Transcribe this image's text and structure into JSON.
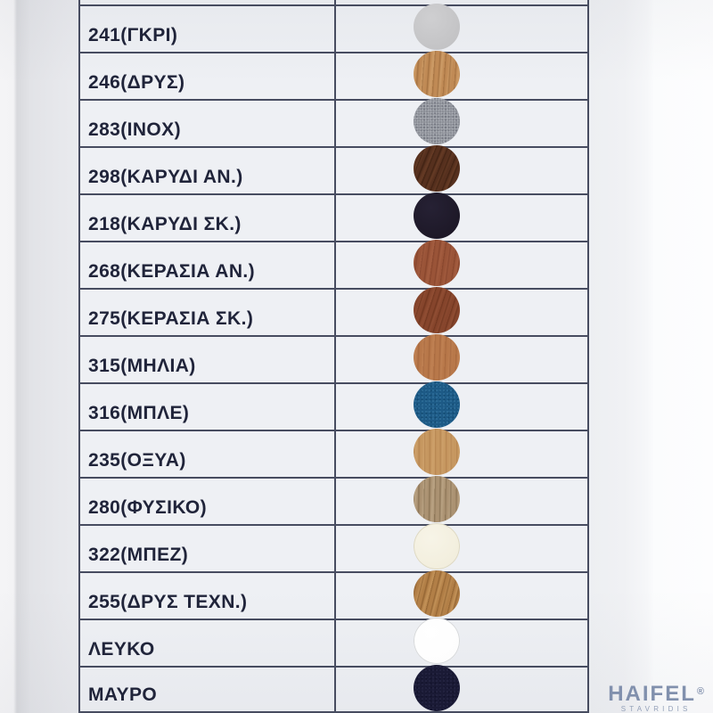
{
  "colors": {
    "line": "#474c60",
    "label_text": "#20243a",
    "paper": "#e9eaee",
    "cell": "#eef0f4",
    "brand": "#8190ad",
    "brand_sub": "#94a1b9"
  },
  "table": {
    "rows": [
      {
        "label": "241(ΓΚΡΙ)",
        "swatch": {
          "type": "smooth",
          "base": "#c3c3c5",
          "light": "#cfcfd1"
        }
      },
      {
        "label": "246(ΔΡΥΣ)",
        "swatch": {
          "type": "wood",
          "base": "#c08a55",
          "grain": "#99683a",
          "light": "#d9ae79",
          "angle": 94
        }
      },
      {
        "label": "283(INOX)",
        "swatch": {
          "type": "speckle",
          "base": "#8c8f97",
          "dot1": "#a9acb3",
          "dot2": "#6f727c"
        }
      },
      {
        "label": "298(ΚΑΡΥΔΙ ΑΝ.)",
        "swatch": {
          "type": "wood",
          "base": "#56301e",
          "grain": "#371c0e",
          "light": "#74452b",
          "angle": 112
        }
      },
      {
        "label": "218(ΚΑΡΥΔΙ ΣΚ.)",
        "swatch": {
          "type": "smooth",
          "base": "#1d1827",
          "light": "#262134"
        }
      },
      {
        "label": "268(ΚΕΡΑΣΙΑ ΑΝ.)",
        "swatch": {
          "type": "wood",
          "base": "#9a5438",
          "grain": "#7f3f28",
          "light": "#ad6648",
          "angle": 98
        }
      },
      {
        "label": "275(ΚΕΡΑΣΙΑ ΣΚ.)",
        "swatch": {
          "type": "wood",
          "base": "#86452c",
          "grain": "#67301a",
          "light": "#9a563a",
          "angle": 108
        }
      },
      {
        "label": "315(ΜΗΛΙΑ)",
        "swatch": {
          "type": "wood",
          "base": "#b8784a",
          "grain": "#a1633a",
          "light": "#c78a5c",
          "angle": 92
        }
      },
      {
        "label": "316(ΜΠΛΕ)",
        "swatch": {
          "type": "leather",
          "base": "#1d5a86",
          "dot1": "#2f6e99",
          "dot2": "#134a70"
        }
      },
      {
        "label": "235(ΟΞΥΑ)",
        "swatch": {
          "type": "wood",
          "base": "#c69760",
          "grain": "#b07f4b",
          "light": "#d4a974",
          "angle": 90
        }
      },
      {
        "label": "280(ΦΥΣΙΚΟ)",
        "swatch": {
          "type": "wood",
          "base": "#ab9272",
          "grain": "#7f694b",
          "light": "#c7b394",
          "angle": 91
        }
      },
      {
        "label": "322(ΜΠΕΖ)",
        "swatch": {
          "type": "smooth",
          "base": "#f2eedd",
          "light": "#f7f4e7",
          "ring": "#ddd8c2"
        }
      },
      {
        "label": "255(ΔΡΥΣ ΤΕΧΝ.)",
        "swatch": {
          "type": "wood",
          "base": "#b27f47",
          "grain": "#875a2b",
          "light": "#d2a468",
          "angle": 104
        }
      },
      {
        "label": "ΛΕΥΚΟ",
        "swatch": {
          "type": "smooth",
          "base": "#fdfdfd",
          "light": "#ffffff",
          "ring": "#d6d8da"
        }
      },
      {
        "label": "ΜΑΥΡΟ",
        "swatch": {
          "type": "leather",
          "base": "#1a1a35",
          "dot1": "#242442",
          "dot2": "#12122a"
        }
      }
    ]
  },
  "logo": {
    "brand": "HAIFEL",
    "reg": "®",
    "sub": "STAVRIDIS"
  }
}
